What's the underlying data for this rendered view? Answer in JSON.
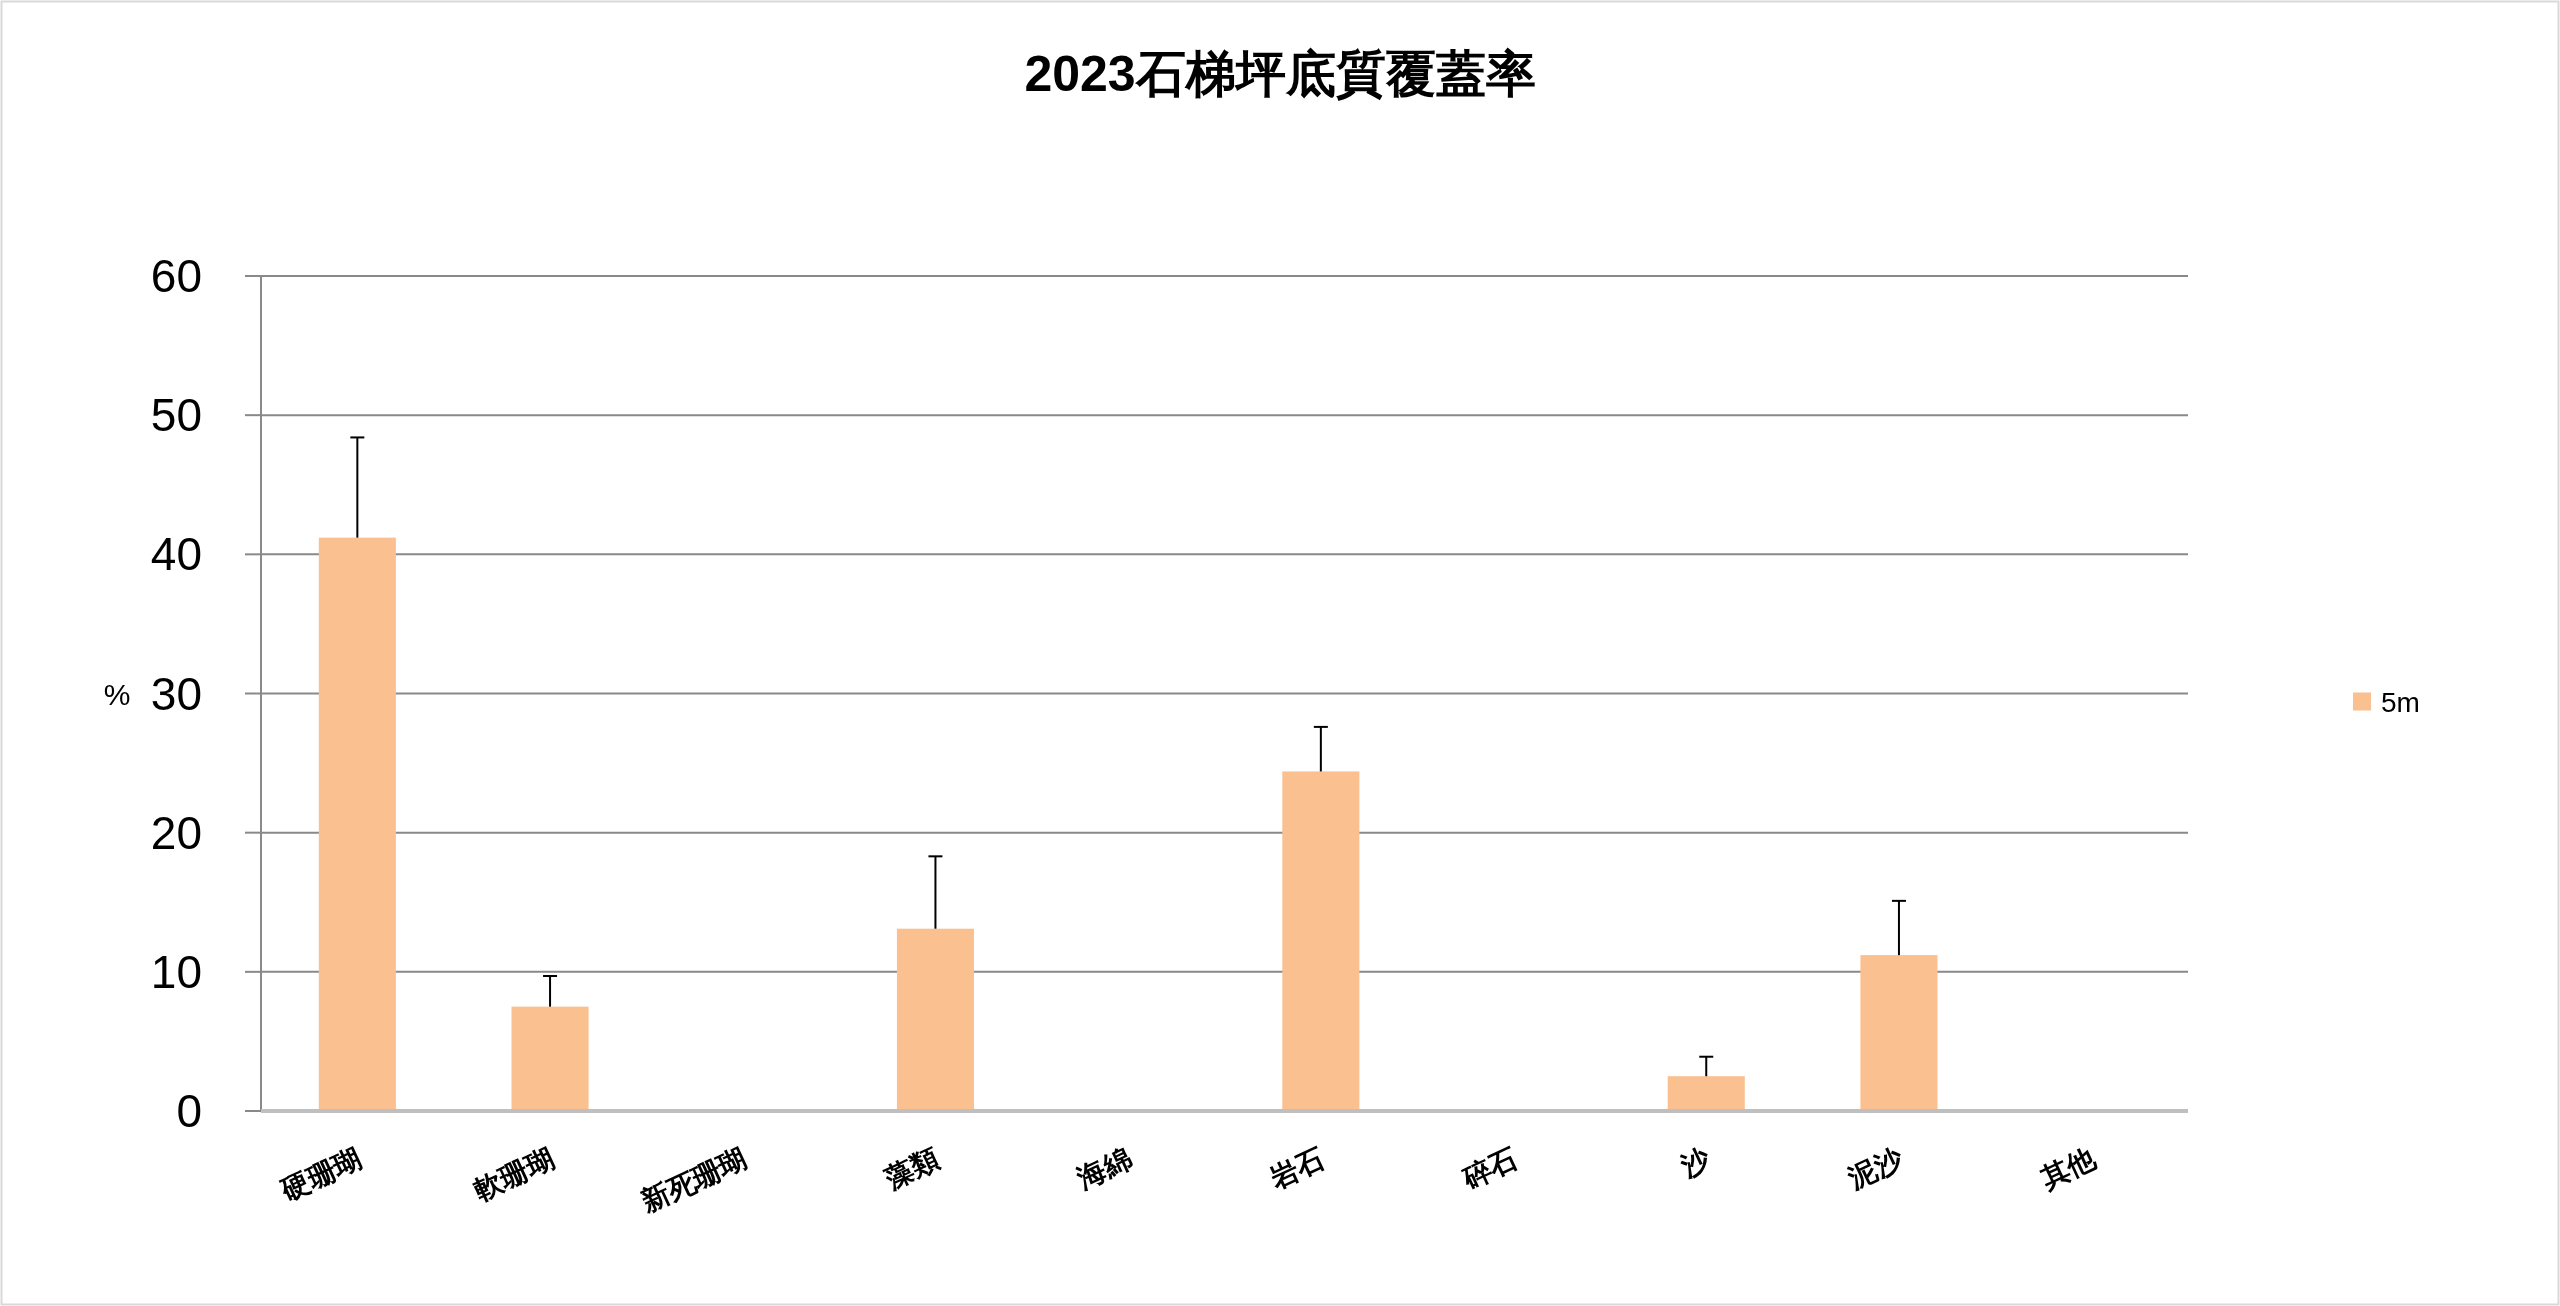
{
  "chart_data": {
    "type": "bar",
    "title": "2023石梯坪底質覆蓋率",
    "ylabel": "%",
    "categories": [
      "硬珊瑚",
      "軟珊瑚",
      "新死珊瑚",
      "藻類",
      "海綿",
      "岩石",
      "碎石",
      "沙",
      "泥沙",
      "其他"
    ],
    "series": [
      {
        "name": "5m",
        "color": "#fac090",
        "values": [
          41.2,
          7.5,
          0,
          13.1,
          0,
          24.4,
          0,
          2.5,
          11.2,
          0
        ],
        "errors": [
          [
            41.2,
            48.4
          ],
          [
            7.5,
            9.7
          ],
          null,
          [
            13.1,
            18.3
          ],
          null,
          [
            24.4,
            27.6
          ],
          null,
          [
            2.5,
            3.9
          ],
          [
            11.2,
            15.1
          ],
          null
        ]
      }
    ],
    "ylim": [
      0,
      60
    ],
    "yticks": [
      0,
      10,
      20,
      30,
      40,
      50,
      60
    ],
    "grid": "y",
    "legend": "right"
  }
}
